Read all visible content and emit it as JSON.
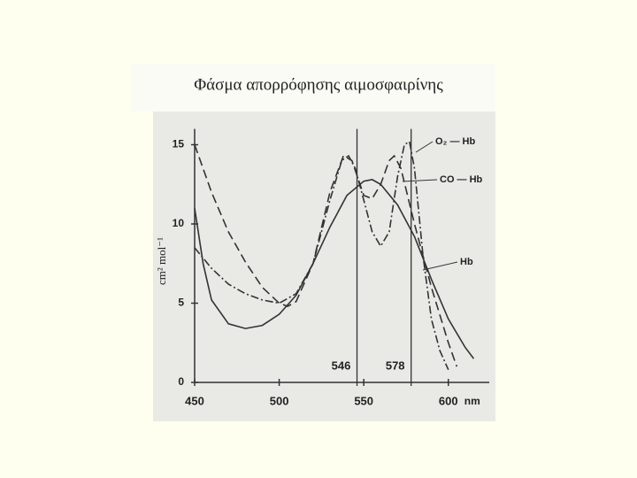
{
  "chart_data": {
    "type": "line",
    "title": "Φάσμα απορρόφησης αιμοσφαιρίνης",
    "ylabel": "cm² mol⁻¹",
    "xlabel": "nm",
    "xlim": [
      450,
      620
    ],
    "ylim": [
      0,
      16
    ],
    "xticks": [
      450,
      500,
      550,
      600
    ],
    "yticks": [
      0,
      5,
      10,
      15
    ],
    "reference_lines": [
      546,
      578
    ],
    "series": [
      {
        "name": "O₂ — Hb",
        "color": "#333333",
        "dash": "9 3 2 3",
        "x": [
          450,
          460,
          470,
          480,
          490,
          500,
          510,
          520,
          530,
          537,
          541,
          545,
          550,
          555,
          560,
          565,
          570,
          574,
          577,
          580,
          585,
          590,
          595,
          600
        ],
        "values": [
          8.5,
          7.2,
          6.2,
          5.6,
          5.2,
          5.0,
          5.6,
          7.5,
          11.5,
          14.0,
          14.3,
          13.5,
          11.5,
          9.5,
          8.6,
          9.5,
          13.0,
          15.0,
          15.2,
          13.5,
          8.0,
          4.0,
          2.0,
          0.8
        ]
      },
      {
        "name": "CO — Hb",
        "color": "#333333",
        "dash": "10 5",
        "x": [
          450,
          460,
          470,
          480,
          490,
          500,
          505,
          510,
          520,
          530,
          538,
          543,
          550,
          555,
          560,
          565,
          568,
          572,
          580,
          590,
          600,
          605
        ],
        "values": [
          15.0,
          12.0,
          9.5,
          7.6,
          6.0,
          5.0,
          4.8,
          5.1,
          7.5,
          12.0,
          14.3,
          14.0,
          11.8,
          11.6,
          12.5,
          14.0,
          14.3,
          13.5,
          10.0,
          6.0,
          2.5,
          1.0
        ]
      },
      {
        "name": "Hb",
        "color": "#333333",
        "dash": "",
        "x": [
          450,
          455,
          460,
          470,
          480,
          490,
          500,
          510,
          520,
          530,
          540,
          550,
          555,
          560,
          570,
          580,
          590,
          600,
          610,
          615
        ],
        "values": [
          11.0,
          7.5,
          5.2,
          3.7,
          3.4,
          3.6,
          4.3,
          5.5,
          7.5,
          9.8,
          11.8,
          12.7,
          12.8,
          12.5,
          11.2,
          9.2,
          6.5,
          4.0,
          2.2,
          1.5
        ]
      }
    ]
  }
}
